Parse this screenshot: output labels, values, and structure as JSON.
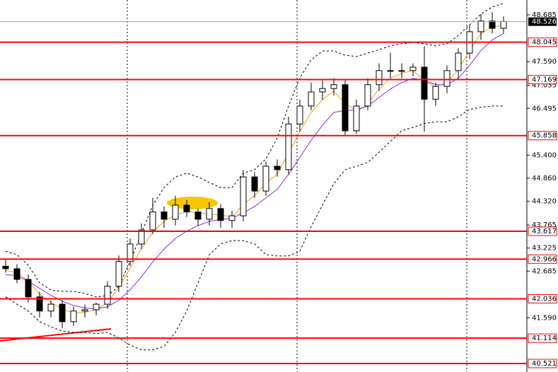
{
  "chart_data": {
    "type": "candlestick",
    "open": [
      42.8,
      42.74,
      42.49,
      42.08,
      41.75,
      41.91,
      41.5,
      41.75,
      41.78,
      41.91,
      42.33,
      42.91,
      43.32,
      43.65,
      44.07,
      43.9,
      44.23,
      44.07,
      43.9,
      44.15,
      43.87,
      43.98,
      44.89,
      44.56,
      45.14,
      45.06,
      46.13,
      46.55,
      46.88,
      46.96,
      47.05,
      45.97,
      46.55,
      47.05,
      47.38,
      47.38,
      47.38,
      47.46,
      46.71,
      47.01,
      47.38,
      47.79,
      48.29,
      48.54,
      48.37
    ],
    "high": [
      42.95,
      42.85,
      42.6,
      42.2,
      42.0,
      42.0,
      41.85,
      41.9,
      41.95,
      42.45,
      43.05,
      43.45,
      43.8,
      44.4,
      44.2,
      44.45,
      44.35,
      44.15,
      44.3,
      44.25,
      44.1,
      45.05,
      45.0,
      45.25,
      45.3,
      46.3,
      46.7,
      47.1,
      47.15,
      47.2,
      47.15,
      46.7,
      47.2,
      47.55,
      47.8,
      47.55,
      47.55,
      47.95,
      47.1,
      47.5,
      47.9,
      48.45,
      48.7,
      48.75,
      48.65
    ],
    "low": [
      42.65,
      42.4,
      41.95,
      41.6,
      41.6,
      41.35,
      41.4,
      41.6,
      41.65,
      41.8,
      42.2,
      42.8,
      43.2,
      43.55,
      43.7,
      43.75,
      43.95,
      43.75,
      43.75,
      43.7,
      43.7,
      43.85,
      44.4,
      44.45,
      44.9,
      44.95,
      45.95,
      46.45,
      46.7,
      46.8,
      45.85,
      45.9,
      46.45,
      46.9,
      47.2,
      47.2,
      47.25,
      45.95,
      46.55,
      46.85,
      47.2,
      47.65,
      48.1,
      48.25,
      48.25
    ],
    "close": [
      42.74,
      42.49,
      42.08,
      41.75,
      41.91,
      41.5,
      41.75,
      41.78,
      41.91,
      42.33,
      42.91,
      43.32,
      43.65,
      44.07,
      43.9,
      44.23,
      44.07,
      43.9,
      44.15,
      43.87,
      43.98,
      44.89,
      44.56,
      45.14,
      45.06,
      46.13,
      46.55,
      46.88,
      46.96,
      47.05,
      45.97,
      46.55,
      47.05,
      47.38,
      47.38,
      47.38,
      47.46,
      46.71,
      47.01,
      47.38,
      47.79,
      48.29,
      48.54,
      48.37,
      48.53
    ],
    "up_color": "#ffffff",
    "down_color": "#000000",
    "series": [
      {
        "color": "#000000",
        "style": "dashed",
        "values": [
          43.15,
          43.07,
          42.82,
          42.41,
          42.24,
          42.21,
          42.21,
          42.16,
          42.08,
          42.11,
          42.33,
          42.91,
          43.57,
          44.23,
          44.64,
          44.89,
          44.98,
          44.89,
          44.76,
          44.64,
          44.64,
          44.98,
          45.06,
          45.31,
          45.8,
          46.55,
          47.21,
          47.63,
          47.84,
          47.84,
          47.74,
          47.71,
          47.79,
          47.87,
          47.96,
          48.01,
          48.04,
          48.01,
          47.96,
          48.01,
          48.2,
          48.45,
          48.7,
          48.87,
          48.95
        ]
      },
      {
        "color": "#000000",
        "style": "dashed",
        "values": [
          42.08,
          41.91,
          41.75,
          41.5,
          41.38,
          41.28,
          41.25,
          41.25,
          41.22,
          41.25,
          41.12,
          40.95,
          40.84,
          40.84,
          40.92,
          41.25,
          41.75,
          42.41,
          43.07,
          43.32,
          43.4,
          43.4,
          43.32,
          43.07,
          43.04,
          43.04,
          43.15,
          43.73,
          44.23,
          44.73,
          45.06,
          45.14,
          45.23,
          45.47,
          45.72,
          45.97,
          46.05,
          46.14,
          46.18,
          46.18,
          46.3,
          46.47,
          46.52,
          46.55,
          46.55
        ]
      },
      {
        "color": "#e8a317",
        "style": "solid",
        "values": [
          42.7,
          42.65,
          42.45,
          42.15,
          41.95,
          41.8,
          41.7,
          41.72,
          41.78,
          41.95,
          42.3,
          42.75,
          43.2,
          43.6,
          43.85,
          44.0,
          44.08,
          44.05,
          44.02,
          44.0,
          43.95,
          44.25,
          44.45,
          44.75,
          44.95,
          45.45,
          45.95,
          46.4,
          46.7,
          46.9,
          46.6,
          46.45,
          46.6,
          46.95,
          47.2,
          47.32,
          47.38,
          47.15,
          47.0,
          47.1,
          47.4,
          47.85,
          48.25,
          48.4,
          48.45
        ]
      },
      {
        "color": "#8a2be2",
        "style": "solid",
        "values": [
          42.6,
          42.58,
          42.45,
          42.28,
          42.12,
          41.98,
          41.88,
          41.82,
          41.8,
          41.85,
          42.0,
          42.25,
          42.55,
          42.9,
          43.2,
          43.45,
          43.62,
          43.75,
          43.85,
          43.9,
          43.92,
          44.05,
          44.2,
          44.4,
          44.6,
          44.95,
          45.35,
          45.75,
          46.1,
          46.4,
          46.45,
          46.45,
          46.55,
          46.75,
          46.95,
          47.1,
          47.2,
          47.15,
          47.05,
          47.05,
          47.2,
          47.5,
          47.85,
          48.1,
          48.25
        ]
      }
    ],
    "ylim": [
      40.322,
      49.033
    ],
    "yticks": [
      48.685,
      {
        "value": 47.59,
        "label": "47.590"
      },
      47.035,
      46.495,
      {
        "value": 45.4,
        "label": "45.400"
      },
      {
        "value": 44.86,
        "label": "44.860"
      },
      {
        "value": 44.32,
        "label": "44.320"
      },
      43.765,
      43.225,
      42.685,
      {
        "value": 41.59,
        "label": "41.590"
      }
    ],
    "levels": [
      48.045,
      47.169,
      45.858,
      43.617,
      42.966,
      42.036,
      41.114,
      40.521
    ],
    "level_color": "#ff0000",
    "last_price": 48.526
  }
}
